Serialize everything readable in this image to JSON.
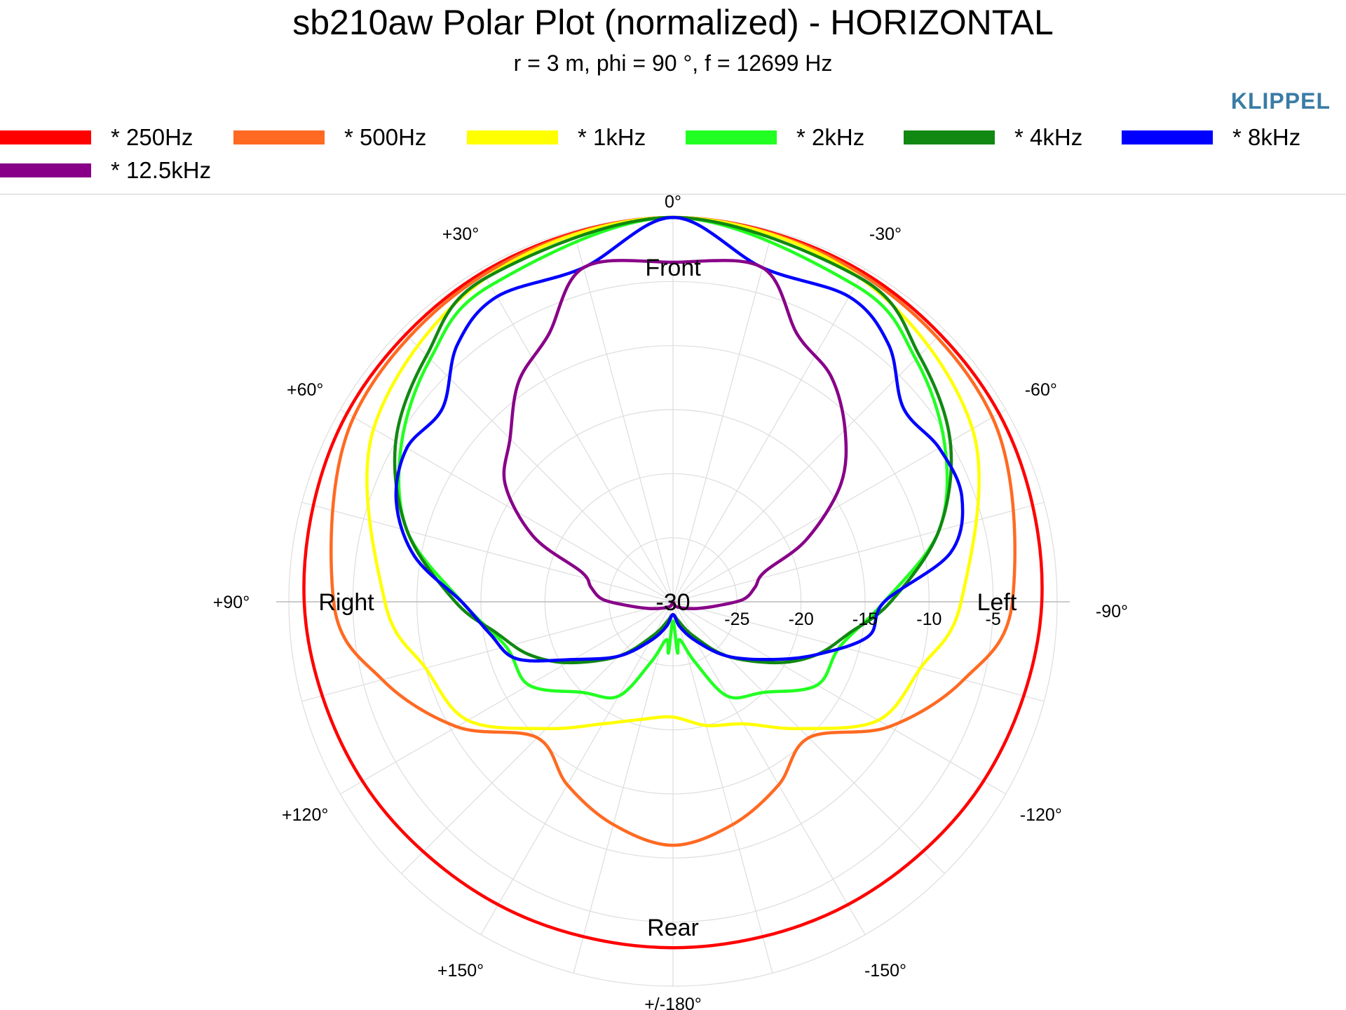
{
  "title": "sb210aw Polar Plot (normalized) - HORIZONTAL",
  "subtitle": "r = 3 m, phi = 90 °, f = 12699 Hz",
  "brand": "KLIPPEL",
  "legend": [
    {
      "label": "* 250Hz",
      "color": "#ff0000"
    },
    {
      "label": "* 500Hz",
      "color": "#ff6a22"
    },
    {
      "label": "* 1kHz",
      "color": "#ffff00"
    },
    {
      "label": "* 2kHz",
      "color": "#22ff22"
    },
    {
      "label": "* 4kHz",
      "color": "#118811"
    },
    {
      "label": "* 8kHz",
      "color": "#0000ff"
    },
    {
      "label": "* 12.5kHz",
      "color": "#880088"
    }
  ],
  "chart_data": {
    "type": "polar",
    "title": "sb210aw Polar Plot (normalized) - HORIZONTAL",
    "subtitle": "r = 3 m, phi = 90 °, f = 12699 Hz",
    "angle_labels": [
      {
        "deg": 0,
        "text": "0°"
      },
      {
        "deg": -30,
        "text": "-30°"
      },
      {
        "deg": -60,
        "text": "-60°"
      },
      {
        "deg": -90,
        "text": "-90°"
      },
      {
        "deg": -120,
        "text": "-120°"
      },
      {
        "deg": -150,
        "text": "-150°"
      },
      {
        "deg": 180,
        "text": "+/-180°"
      },
      {
        "deg": 150,
        "text": "+150°"
      },
      {
        "deg": 120,
        "text": "+120°"
      },
      {
        "deg": 90,
        "text": "+90°"
      },
      {
        "deg": 60,
        "text": "+60°"
      },
      {
        "deg": 30,
        "text": "+30°"
      }
    ],
    "radial_axis": {
      "min": -30,
      "max": 0,
      "unit": "dB",
      "ticks": [
        -25,
        -20,
        -15,
        -10,
        -5
      ]
    },
    "center_label": "-30",
    "direction_labels": {
      "front": "Front",
      "rear": "Rear",
      "left": "Left",
      "right": "Right"
    },
    "grid": true,
    "series": [
      {
        "name": "* 250Hz",
        "color": "#ff0000",
        "angles": [
          0,
          30,
          60,
          90,
          120,
          150,
          180,
          -150,
          -120,
          -90,
          -60,
          -30
        ],
        "values": [
          0,
          -0.3,
          -0.6,
          -1.2,
          -2.0,
          -2.7,
          -3.0,
          -2.7,
          -2.0,
          -1.2,
          -0.6,
          -0.3
        ]
      },
      {
        "name": "* 500Hz",
        "color": "#ff6a22",
        "angles": [
          0,
          30,
          60,
          90,
          105,
          120,
          135,
          150,
          165,
          180,
          -165,
          -150,
          -135,
          -120,
          -105,
          -90,
          -60,
          -30
        ],
        "values": [
          0,
          -0.5,
          -1.2,
          -3.5,
          -6.5,
          -10.5,
          -15.0,
          -13.5,
          -12.0,
          -11.0,
          -12.0,
          -13.5,
          -15.0,
          -10.5,
          -6.5,
          -3.5,
          -1.2,
          -0.5
        ]
      },
      {
        "name": "* 1kHz",
        "color": "#ffff00",
        "angles": [
          0,
          30,
          60,
          90,
          105,
          120,
          135,
          150,
          165,
          180,
          -165,
          -150,
          -135,
          -120,
          -105,
          -90,
          -60,
          -30
        ],
        "values": [
          0,
          -0.8,
          -3.0,
          -7.5,
          -10.0,
          -11.5,
          -16.0,
          -19.0,
          -20.5,
          -21.0,
          -20.0,
          -19.0,
          -16.0,
          -11.5,
          -10.0,
          -7.5,
          -3.0,
          -0.8
        ]
      },
      {
        "name": "* 2kHz",
        "color": "#22ff22",
        "angles": [
          0,
          30,
          45,
          60,
          75,
          90,
          105,
          120,
          135,
          150,
          160,
          170,
          175,
          180,
          -175,
          -170,
          -160,
          -150,
          -135,
          -120,
          -105,
          -90,
          -75,
          -60,
          -45,
          -30
        ],
        "values": [
          0,
          -1.5,
          -3.2,
          -5.5,
          -8.5,
          -13.5,
          -16.5,
          -17.0,
          -20.0,
          -21.5,
          -25.0,
          -27.0,
          -26.0,
          -28.5,
          -26.0,
          -27.0,
          -25.0,
          -21.5,
          -20.0,
          -17.0,
          -16.5,
          -13.5,
          -8.5,
          -5.5,
          -3.2,
          -1.5
        ]
      },
      {
        "name": "* 4kHz",
        "color": "#118811",
        "angles": [
          0,
          30,
          45,
          60,
          75,
          90,
          100,
          110,
          120,
          135,
          150,
          165,
          180,
          -165,
          -150,
          -135,
          -120,
          -110,
          -100,
          -90,
          -75,
          -60,
          -45,
          -30
        ],
        "values": [
          0,
          -0.8,
          -2.8,
          -5.0,
          -8.5,
          -13.0,
          -16.0,
          -18.0,
          -20.5,
          -24.0,
          -27.0,
          -28.5,
          -29.0,
          -28.5,
          -27.0,
          -24.0,
          -20.5,
          -18.0,
          -16.0,
          -13.0,
          -8.5,
          -5.0,
          -2.8,
          -0.8
        ]
      },
      {
        "name": "* 8kHz",
        "color": "#0000ff",
        "angles": [
          0,
          15,
          30,
          40,
          50,
          60,
          70,
          80,
          90,
          100,
          110,
          120,
          135,
          150,
          165,
          180,
          -165,
          -150,
          -135,
          -120,
          -110,
          -100,
          -90,
          -80,
          -70,
          -60,
          -50,
          -40,
          -30,
          -15
        ],
        "values": [
          0,
          -3.0,
          -2.5,
          -3.8,
          -6.5,
          -6.0,
          -7.0,
          -9.5,
          -13.5,
          -15.5,
          -17.0,
          -21.0,
          -24.0,
          -26.5,
          -28.0,
          -29.0,
          -28.0,
          -26.5,
          -24.0,
          -21.0,
          -18.0,
          -14.5,
          -13.5,
          -8.0,
          -6.0,
          -6.0,
          -6.5,
          -3.8,
          -2.5,
          -3.0
        ]
      },
      {
        "name": "* 12.5kHz",
        "color": "#880088",
        "angles": [
          0,
          15,
          25,
          35,
          45,
          55,
          65,
          72,
          80,
          88,
          95,
          105,
          120,
          150,
          180,
          -150,
          -120,
          -105,
          -95,
          -88,
          -80,
          -72,
          -65,
          -55,
          -45,
          -35,
          -25,
          -15
        ],
        "values": [
          -3.5,
          -3.0,
          -7.0,
          -9.0,
          -12.0,
          -14.0,
          -18.0,
          -22.5,
          -23.5,
          -24.5,
          -26.5,
          -28.0,
          -29.0,
          -29.6,
          -30.0,
          -29.6,
          -29.0,
          -28.0,
          -26.5,
          -24.5,
          -23.5,
          -22.5,
          -18.5,
          -14.0,
          -11.0,
          -8.5,
          -7.0,
          -3.0
        ]
      }
    ]
  }
}
